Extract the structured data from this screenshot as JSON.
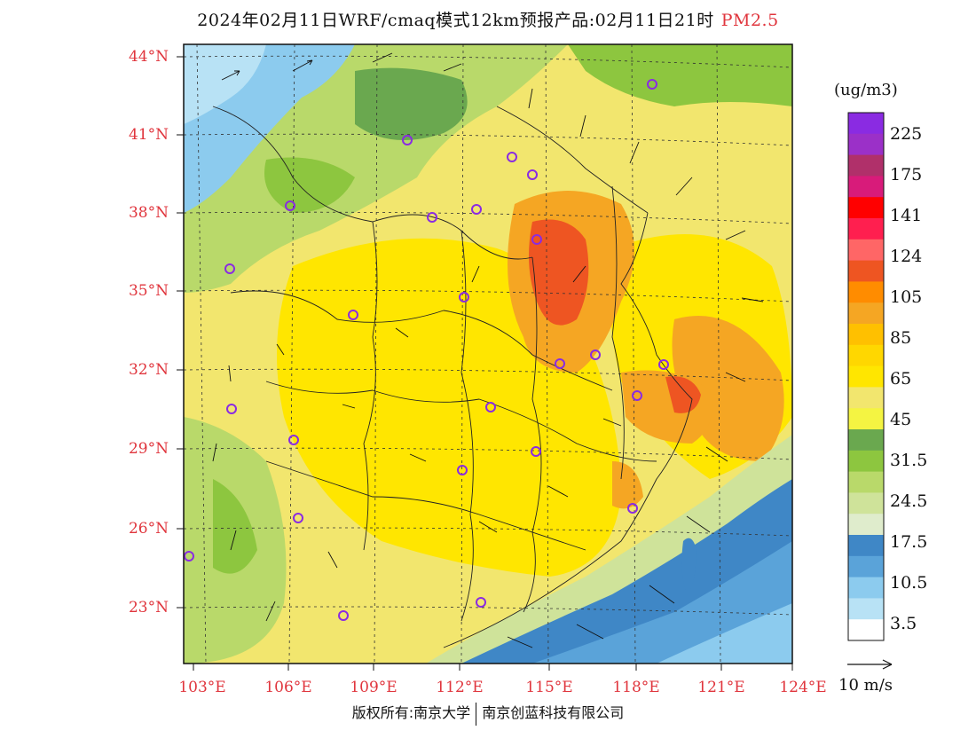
{
  "title": {
    "main": "2024年02月11日WRF/cmaq模式12km预报产品:02月11日21时",
    "pollutant": "PM2.5"
  },
  "axes": {
    "lat_labels": [
      "44°N",
      "41°N",
      "38°N",
      "35°N",
      "32°N",
      "29°N",
      "26°N",
      "23°N"
    ],
    "lon_labels": [
      "103°E",
      "106°E",
      "109°E",
      "112°E",
      "115°E",
      "118°E",
      "121°E",
      "124°E"
    ]
  },
  "colorbar": {
    "units": "(ug/m3)",
    "labels": [
      "225",
      "175",
      "141",
      "124",
      "105",
      "85",
      "65",
      "45",
      "31.5",
      "24.5",
      "17.5",
      "10.5",
      "3.5"
    ],
    "colors": [
      "#8a2be2",
      "#9b30c8",
      "#b0306a",
      "#d81b7a",
      "#ff0000",
      "#ff1f4f",
      "#ff6666",
      "#ee5522",
      "#ff8c00",
      "#f5a623",
      "#ffc000",
      "#ffd700",
      "#ffe600",
      "#f2e66e",
      "#f4f442",
      "#6aa84f",
      "#8dc63f",
      "#b9d96a",
      "#cfe39a",
      "#dfeccc",
      "#3f87c6",
      "#5aa3d9",
      "#8ccbee",
      "#b8e2f5",
      "#ffffff"
    ]
  },
  "wind_reference": "10 m/s",
  "copyright": {
    "left": "版权所有:南京大学",
    "right": "南京创蓝科技有限公司"
  }
}
